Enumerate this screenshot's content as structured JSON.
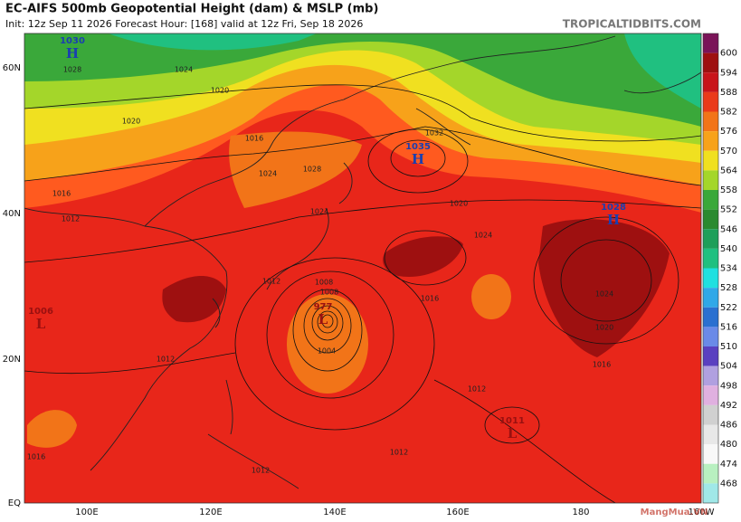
{
  "header": {
    "title": "EC-AIFS 500mb Geopotential Height (dam) & MSLP (mb)",
    "subtitle": "Init: 12z Sep 11 2026   Forecast Hour: [168]   valid at 12z Fri, Sep 18 2026",
    "source": "TROPICALTIDBITS.COM"
  },
  "map": {
    "lat_labels": [
      "60N",
      "40N",
      "20N",
      "EQ"
    ],
    "lon_labels": [
      "100E",
      "120E",
      "140E",
      "160E",
      "180",
      "160W"
    ],
    "centers": [
      {
        "value": "1030",
        "letter": "H"
      },
      {
        "value": "1035",
        "letter": "H"
      },
      {
        "value": "1028",
        "letter": "H"
      },
      {
        "value": "1011",
        "letter": "L"
      },
      {
        "value": "1006",
        "letter": "L"
      },
      {
        "value": "977",
        "letter": "L"
      }
    ],
    "isobar_labels": [
      "1028",
      "1024",
      "1020",
      "1020",
      "1016",
      "1016",
      "1012",
      "1024",
      "1028",
      "1032",
      "1024",
      "1024",
      "1020",
      "1016",
      "1012",
      "1008",
      "1004",
      "1012",
      "1012",
      "1016",
      "1024",
      "1020",
      "1016",
      "1012",
      "1012",
      "1008"
    ]
  },
  "colorbar": {
    "labels": [
      "600",
      "594",
      "588",
      "582",
      "576",
      "570",
      "564",
      "558",
      "552",
      "546",
      "540",
      "534",
      "528",
      "522",
      "516",
      "510",
      "504",
      "498",
      "492",
      "486",
      "480",
      "474",
      "468"
    ]
  },
  "watermark": "MangMua.VN"
}
